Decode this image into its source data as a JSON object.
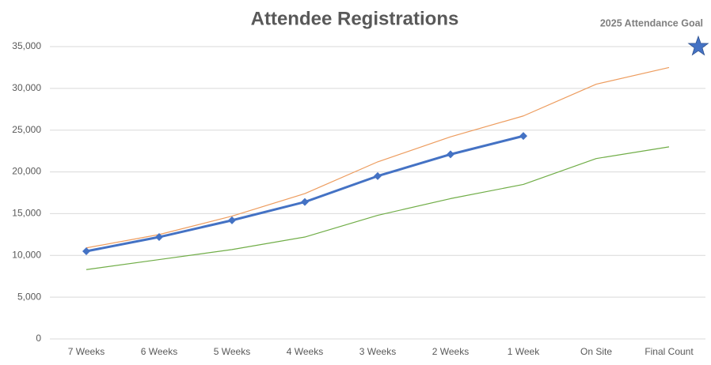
{
  "chart_data": {
    "type": "line",
    "title": "Attendee Registrations",
    "categories": [
      "7 Weeks",
      "6 Weeks",
      "5 Weeks",
      "4 Weeks",
      "3 Weeks",
      "2 Weeks",
      "1 Week",
      "On Site",
      "Final Count"
    ],
    "series": [
      {
        "color": "#ed9c5e",
        "width": 1.2,
        "markers": false,
        "values": [
          10900,
          12500,
          14700,
          17400,
          21200,
          24200,
          26700,
          30500,
          32500
        ]
      },
      {
        "color": "#70ad47",
        "width": 1.2,
        "markers": false,
        "values": [
          8300,
          9500,
          10700,
          12200,
          14800,
          16800,
          18500,
          21600,
          23000
        ]
      },
      {
        "color": "#4472c4",
        "width": 3,
        "markers": true,
        "values": [
          10500,
          12200,
          14200,
          16400,
          19500,
          22100,
          24300,
          null,
          null
        ]
      }
    ],
    "goal": {
      "label": "2025 Attendance Goal",
      "value": 35000,
      "color": "#4472c4"
    },
    "ylim": [
      0,
      35000
    ],
    "yticks": [
      0,
      {
        "value": 5000,
        "label": "5,000"
      },
      {
        "value": 10000,
        "label": "10,000"
      },
      {
        "value": 15000,
        "label": "15,000"
      },
      {
        "value": 20000,
        "label": "20,000"
      },
      {
        "value": 25000,
        "label": "25,000"
      },
      {
        "value": 30000,
        "label": "30,000"
      },
      {
        "value": 35000,
        "label": "35,000"
      }
    ],
    "grid": true
  }
}
